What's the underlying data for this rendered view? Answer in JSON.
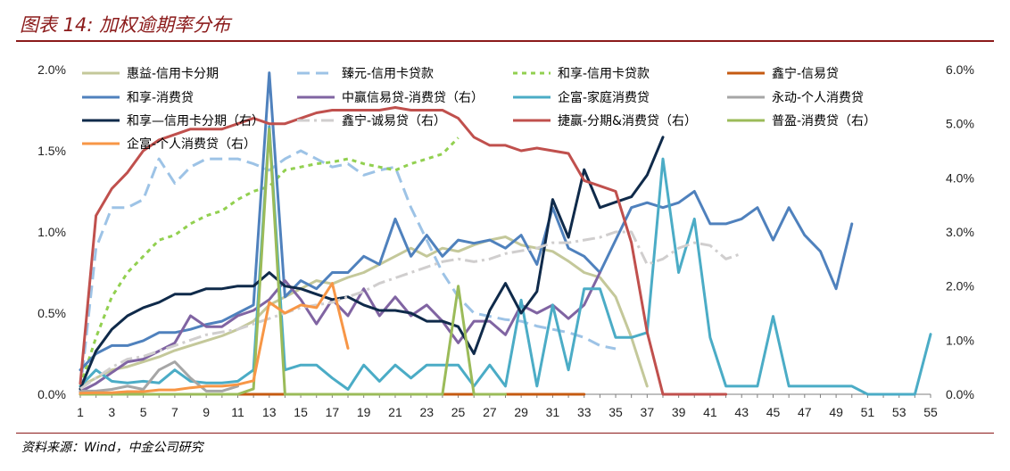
{
  "title": "图表 14: 加权逾期率分布",
  "source": "资料来源：Wind，中金公司研究",
  "chart_data": {
    "type": "line",
    "x": [
      1,
      2,
      3,
      4,
      5,
      6,
      7,
      8,
      9,
      10,
      11,
      12,
      13,
      14,
      15,
      16,
      17,
      18,
      19,
      20,
      21,
      22,
      23,
      24,
      25,
      26,
      27,
      28,
      29,
      30,
      31,
      32,
      33,
      34,
      35,
      36,
      37,
      38,
      39,
      40,
      41,
      42,
      43,
      44,
      45,
      46,
      47,
      48,
      49,
      50,
      51,
      52,
      53,
      54,
      55
    ],
    "x_ticks": [
      "1",
      "3",
      "5",
      "7",
      "9",
      "11",
      "13",
      "15",
      "17",
      "19",
      "21",
      "23",
      "25",
      "27",
      "29",
      "31",
      "33",
      "35",
      "37",
      "39",
      "41",
      "43",
      "45",
      "47",
      "49",
      "51",
      "53",
      "55"
    ],
    "y_left": {
      "min": 0,
      "max": 0.02,
      "ticks": [
        "0.0%",
        "0.5%",
        "1.0%",
        "1.5%",
        "2.0%"
      ]
    },
    "y_right": {
      "min": 0,
      "max": 0.06,
      "ticks": [
        "0.0%",
        "1.0%",
        "2.0%",
        "3.0%",
        "4.0%",
        "5.0%",
        "6.0%"
      ]
    },
    "series": [
      {
        "name": "惠益-信用卡分期",
        "color": "#C4C89A",
        "dash": "",
        "width": 3,
        "axis": "left",
        "values": [
          0.0005,
          0.001,
          0.0015,
          0.0017,
          0.002,
          0.0023,
          0.0027,
          0.003,
          0.0033,
          0.0036,
          0.004,
          0.0045,
          0.0055,
          0.006,
          0.0065,
          0.007,
          0.0068,
          0.0072,
          0.0075,
          0.008,
          0.0085,
          0.009,
          0.0085,
          0.009,
          0.0088,
          0.0092,
          0.0095,
          0.0097,
          0.0092,
          0.009,
          0.0088,
          0.0082,
          0.0075,
          0.0072,
          0.006,
          0.0035,
          0.0005,
          null,
          null,
          null,
          null,
          null,
          null,
          null,
          null,
          null,
          null,
          null,
          null,
          null,
          null,
          null,
          null,
          null,
          null
        ]
      },
      {
        "name": "臻元-信用卡贷款",
        "color": "#9DC3E6",
        "dash": "14,7",
        "width": 3,
        "axis": "left",
        "values": [
          0.0002,
          0.009,
          0.0115,
          0.0115,
          0.012,
          0.0145,
          0.013,
          0.014,
          0.0145,
          0.0145,
          0.0145,
          0.0142,
          0.0138,
          0.0145,
          0.015,
          0.0145,
          0.014,
          0.0142,
          0.0135,
          0.0138,
          0.014,
          0.0115,
          0.0095,
          0.0075,
          0.006,
          0.005,
          0.0048,
          0.0046,
          0.0045,
          0.0042,
          0.004,
          0.0038,
          0.0035,
          0.003,
          0.0028,
          null,
          null,
          null,
          null,
          null,
          null,
          null,
          null,
          null,
          null,
          null,
          null,
          null,
          null,
          null,
          null,
          null,
          null,
          null,
          null
        ]
      },
      {
        "name": "和享-信用卡贷款",
        "color": "#92D050",
        "dash": "5,5",
        "width": 3,
        "axis": "left",
        "values": [
          0.0005,
          0.0035,
          0.006,
          0.0075,
          0.0085,
          0.0095,
          0.0098,
          0.0105,
          0.011,
          0.0113,
          0.012,
          0.0125,
          0.0128,
          0.0138,
          0.014,
          0.0142,
          0.0143,
          0.0145,
          0.0142,
          0.014,
          0.0138,
          0.0142,
          0.0145,
          0.0148,
          0.0158,
          null,
          null,
          null,
          null,
          null,
          null,
          null,
          null,
          null,
          null,
          null,
          null,
          null,
          null,
          null,
          null,
          null,
          null,
          null,
          null,
          null,
          null,
          null,
          null,
          null,
          null,
          null,
          null,
          null,
          null
        ]
      },
      {
        "name": "鑫宁-信易贷",
        "color": "#C55A11",
        "dash": "",
        "width": 3,
        "axis": "left",
        "values": [
          0,
          0,
          0,
          0,
          0,
          0,
          0,
          0,
          0,
          0,
          0,
          0,
          0,
          0,
          0,
          0,
          0,
          0,
          0,
          0,
          0,
          0,
          0,
          0,
          0,
          0,
          0,
          0,
          0,
          0,
          0,
          0,
          0,
          null,
          null,
          null,
          null,
          null,
          null,
          null,
          null,
          null,
          null,
          null,
          null,
          null,
          null,
          null,
          null,
          null,
          null,
          null,
          null,
          null,
          null
        ]
      },
      {
        "name": "和享-消费贷",
        "color": "#4F81BD",
        "dash": "",
        "width": 3,
        "axis": "left",
        "values": [
          0.0015,
          0.0025,
          0.003,
          0.003,
          0.0033,
          0.0038,
          0.0038,
          0.004,
          0.0043,
          0.0045,
          0.005,
          0.0055,
          0.0198,
          0.006,
          0.007,
          0.0065,
          0.0075,
          0.0075,
          0.0085,
          0.008,
          0.0108,
          0.0085,
          0.0098,
          0.0085,
          0.0095,
          0.0093,
          0.0095,
          0.009,
          0.0098,
          0.008,
          0.0115,
          0.009,
          0.0085,
          0.0075,
          0.0095,
          0.0115,
          0.0118,
          0.0115,
          0.0118,
          0.0125,
          0.0105,
          0.0105,
          0.0108,
          0.0115,
          0.0095,
          0.0115,
          0.0098,
          0.0088,
          0.0065,
          0.0105,
          null,
          null,
          null,
          null,
          null
        ]
      },
      {
        "name": "中赢信易贷-消费贷（右）",
        "color": "#8064A2",
        "dash": "",
        "width": 3,
        "axis": "right",
        "values": [
          0.0005,
          0.002,
          0.004,
          0.006,
          0.0065,
          0.008,
          0.0095,
          0.0145,
          0.0125,
          0.0125,
          0.0145,
          0.0155,
          0.0175,
          0.021,
          0.0175,
          0.013,
          0.0175,
          0.0145,
          0.0195,
          0.0145,
          0.018,
          0.0145,
          0.0165,
          0.0135,
          0.0095,
          0.0135,
          0.0135,
          0.011,
          0.0165,
          0.015,
          0.0165,
          0.014,
          0.0165,
          0.0225,
          null,
          null,
          null,
          null,
          null,
          null,
          null,
          null,
          null,
          null,
          null,
          null,
          null,
          null,
          null,
          null,
          null,
          null,
          null,
          null,
          null
        ]
      },
      {
        "name": "企富-家庭消费贷",
        "color": "#4BACC6",
        "dash": "",
        "width": 3,
        "axis": "left",
        "values": [
          0.0005,
          0.0015,
          0.0008,
          0.0007,
          0.0008,
          0.0007,
          0.0015,
          0.0008,
          0.0007,
          0.0007,
          0.0008,
          0.0015,
          0.0165,
          0.0015,
          0.0018,
          0.0018,
          0.001,
          0.0003,
          0.0018,
          0.0008,
          0.0018,
          0.001,
          0.0018,
          0.0018,
          0.0018,
          0.0005,
          0.0018,
          0.0005,
          0.0058,
          0.0005,
          0.0055,
          0.0015,
          0.0065,
          0.0065,
          0.0035,
          0.0035,
          0.0038,
          0.0145,
          0.0075,
          0.0108,
          0.0035,
          0.0005,
          0.0005,
          0.0005,
          0.0048,
          0.0005,
          0.0005,
          0.0005,
          0.0005,
          0.0005,
          0,
          0,
          0,
          0,
          0.0037
        ]
      },
      {
        "name": "永动-个人消费贷",
        "color": "#A6A6A6",
        "dash": "",
        "width": 3,
        "axis": "left",
        "values": [
          0.0002,
          0.0002,
          0.0003,
          0.0005,
          0.0003,
          0.0015,
          0.002,
          0.001,
          0.0002,
          0.0002,
          0.0005,
          null,
          null,
          null,
          null,
          null,
          null,
          null,
          null,
          null,
          null,
          null,
          null,
          null,
          null,
          null,
          null,
          null,
          null,
          null,
          null,
          null,
          null,
          null,
          null,
          null,
          null,
          null,
          null,
          null,
          null,
          null,
          null,
          null,
          null,
          null,
          null,
          null,
          null,
          null,
          null,
          null,
          null,
          null,
          null
        ]
      },
      {
        "name": "和享—信用卡分期（右）",
        "color": "#0F2A4A",
        "dash": "",
        "width": 3,
        "axis": "right",
        "values": [
          0.001,
          0.008,
          0.012,
          0.0145,
          0.016,
          0.017,
          0.0185,
          0.0185,
          0.0195,
          0.0195,
          0.02,
          0.02,
          0.0225,
          0.02,
          0.0195,
          0.0185,
          0.0175,
          0.018,
          0.0165,
          0.0155,
          0.0155,
          0.015,
          0.0135,
          0.0135,
          0.0125,
          0.0075,
          0.0155,
          0.0205,
          0.015,
          0.019,
          0.036,
          0.029,
          0.0415,
          0.0345,
          0.0355,
          0.0365,
          0.0405,
          0.0475,
          null,
          null,
          null,
          null,
          null,
          null,
          null,
          null,
          null,
          null,
          null,
          null,
          null,
          null,
          null,
          null,
          null
        ]
      },
      {
        "name": "鑫宁-诚易贷（右）",
        "color": "#D0CECE",
        "dash": "14,5,3,5",
        "width": 3,
        "axis": "right",
        "values": [
          0.001,
          0.003,
          0.005,
          0.0065,
          0.007,
          0.008,
          0.009,
          0.01,
          0.011,
          0.0115,
          0.012,
          0.013,
          0.014,
          0.015,
          0.016,
          0.0165,
          0.017,
          0.018,
          0.019,
          0.0205,
          0.0215,
          0.0225,
          0.0235,
          0.0245,
          0.025,
          0.0245,
          0.025,
          0.026,
          0.0265,
          0.027,
          0.028,
          0.028,
          0.0285,
          0.029,
          0.03,
          0.03,
          0.024,
          0.025,
          0.027,
          0.028,
          0.0275,
          0.025,
          0.026,
          null,
          null,
          null,
          null,
          null,
          null,
          null,
          null,
          null,
          null,
          null,
          null
        ]
      },
      {
        "name": "捷赢-分期&消费贷（右）",
        "color": "#C0504D",
        "dash": "",
        "width": 3,
        "axis": "right",
        "values": [
          0.002,
          0.033,
          0.038,
          0.041,
          0.045,
          0.047,
          0.048,
          0.049,
          0.049,
          0.049,
          0.05,
          0.051,
          0.05,
          0.05,
          0.051,
          0.052,
          0.0525,
          0.0525,
          0.0525,
          0.0525,
          0.053,
          0.0525,
          0.0525,
          0.0525,
          0.051,
          0.0475,
          0.046,
          0.046,
          0.045,
          0.0455,
          0.045,
          0.0445,
          0.0395,
          0.0385,
          0.0375,
          0.028,
          0.0115,
          0,
          0,
          0,
          0,
          0,
          null,
          null,
          null,
          null,
          null,
          null,
          null,
          null,
          null,
          null,
          null,
          null,
          null
        ]
      },
      {
        "name": "普盈-消费贷（右）",
        "color": "#9BBB59",
        "dash": "",
        "width": 3,
        "axis": "right",
        "values": [
          0,
          0,
          0,
          0,
          0,
          0,
          0,
          0,
          0,
          0,
          0,
          0.001,
          0.049,
          0,
          0,
          0,
          0,
          0,
          0,
          0,
          0,
          0,
          0,
          0,
          0.02,
          0,
          0,
          0,
          null,
          null,
          null,
          null,
          null,
          null,
          null,
          null,
          null,
          null,
          null,
          null,
          null,
          null,
          null,
          null,
          null,
          null,
          null,
          null,
          null,
          null,
          null,
          null,
          null,
          null,
          null
        ]
      },
      {
        "name": "企富-个人消费贷（右）",
        "color": "#F79646",
        "dash": "",
        "width": 3,
        "axis": "right",
        "values": [
          0.0002,
          0.0003,
          0.0003,
          0.0005,
          0.0005,
          0.0008,
          0.0008,
          0.0012,
          0.0015,
          0.0015,
          0.0018,
          0.0025,
          0.017,
          0.015,
          0.0165,
          0.016,
          0.0205,
          0.0085,
          null,
          null,
          null,
          null,
          null,
          null,
          null,
          null,
          null,
          null,
          null,
          null,
          null,
          null,
          null,
          null,
          null,
          null,
          null,
          null,
          null,
          null,
          null,
          null,
          null,
          null,
          null,
          null,
          null,
          null,
          null,
          null,
          null,
          null,
          null,
          null,
          null
        ]
      }
    ],
    "legend": [
      [
        "惠益-信用卡分期",
        "臻元-信用卡贷款",
        "和享-信用卡贷款",
        "鑫宁-信易贷"
      ],
      [
        "和享-消费贷",
        "中赢信易贷-消费贷（右）",
        "企富-家庭消费贷",
        "永动-个人消费贷"
      ],
      [
        "和享—信用卡分期（右）",
        "鑫宁-诚易贷（右）",
        "捷赢-分期&消费贷（右）",
        "普盈-消费贷（右）"
      ],
      [
        "企富-个人消费贷（右）"
      ]
    ],
    "legend_position": "top-inside",
    "grid": false
  }
}
